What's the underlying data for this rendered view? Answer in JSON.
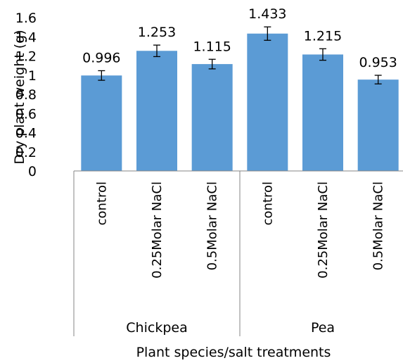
{
  "chart_data": {
    "type": "bar",
    "ylabel": "Dry plant weight (g)",
    "xlabel": "Plant species/salt treatments",
    "ylim": [
      0,
      1.6
    ],
    "yticks": [
      "0",
      "0.2",
      "0.4",
      "0.6",
      "0.8",
      "1",
      "1.2",
      "1.4",
      "1.6"
    ],
    "groups": [
      {
        "name": "Chickpea",
        "categories": [
          "control",
          "0.25Molar NaCl",
          "0.5Molar NaCl"
        ]
      },
      {
        "name": "Pea",
        "categories": [
          "control",
          "0.25Molar NaCl",
          "0.5Molar NaCl"
        ]
      }
    ],
    "categories": [
      "control",
      "0.25Molar NaCl",
      "0.5Molar NaCl",
      "control",
      "0.25Molar NaCl",
      "0.5Molar NaCl"
    ],
    "values": [
      0.996,
      1.253,
      1.115,
      1.433,
      1.215,
      0.953
    ],
    "value_labels": [
      "0.996",
      "1.253",
      "1.115",
      "1.433",
      "1.215",
      "0.953"
    ],
    "error": [
      0.05,
      0.06,
      0.05,
      0.07,
      0.06,
      0.045
    ],
    "bar_color": "#5b9bd5",
    "grid": false,
    "legend": "none"
  }
}
